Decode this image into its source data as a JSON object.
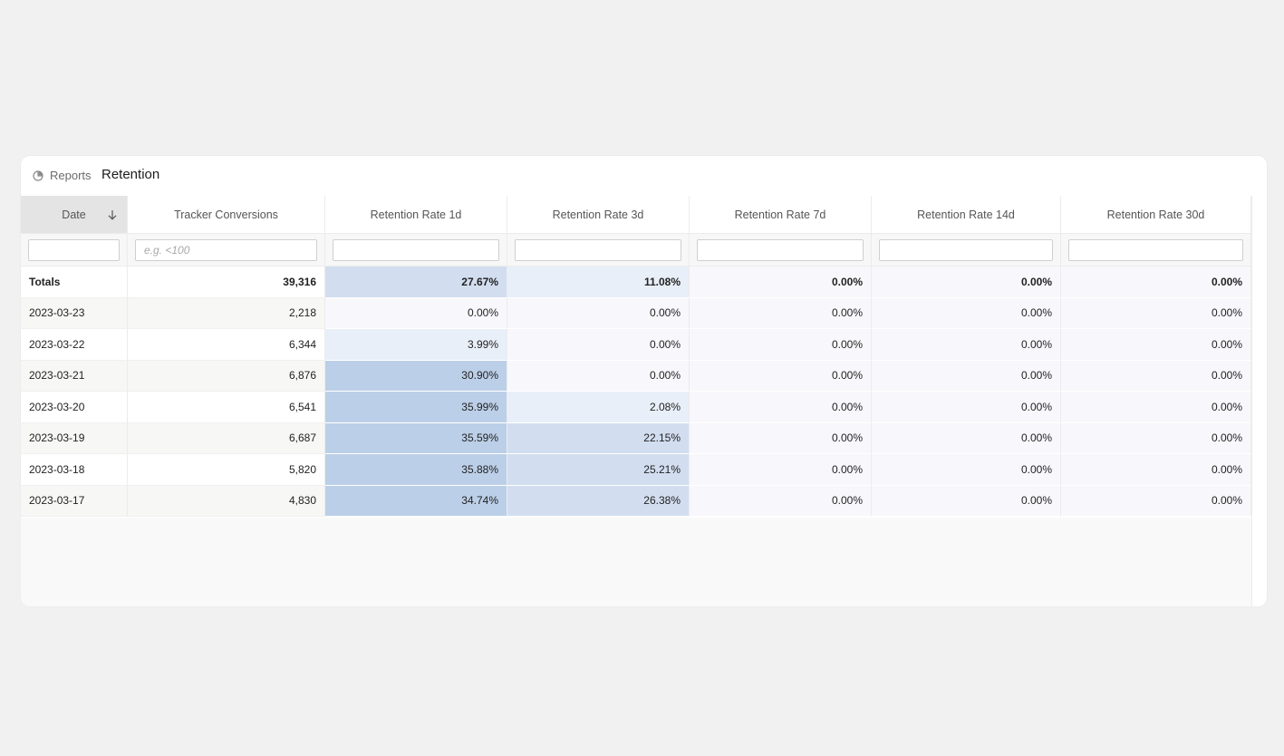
{
  "header": {
    "breadcrumb": "Reports",
    "title": "Retention",
    "icon": "pie-chart-icon"
  },
  "columns": [
    {
      "label": "Date",
      "sorted": "desc"
    },
    {
      "label": "Tracker Conversions"
    },
    {
      "label": "Retention Rate 1d"
    },
    {
      "label": "Retention Rate 3d"
    },
    {
      "label": "Retention Rate 7d"
    },
    {
      "label": "Retention Rate 14d"
    },
    {
      "label": "Retention Rate 30d"
    }
  ],
  "filters": [
    "",
    "e.g. <100",
    "",
    "",
    "",
    "",
    ""
  ],
  "totals": {
    "label": "Totals",
    "conversions": "39,316",
    "rates": [
      "27.67%",
      "11.08%",
      "0.00%",
      "0.00%",
      "0.00%"
    ]
  },
  "rows": [
    {
      "date": "2023-03-23",
      "conversions": "2,218",
      "rates": [
        "0.00%",
        "0.00%",
        "0.00%",
        "0.00%",
        "0.00%"
      ]
    },
    {
      "date": "2023-03-22",
      "conversions": "6,344",
      "rates": [
        "3.99%",
        "0.00%",
        "0.00%",
        "0.00%",
        "0.00%"
      ]
    },
    {
      "date": "2023-03-21",
      "conversions": "6,876",
      "rates": [
        "30.90%",
        "0.00%",
        "0.00%",
        "0.00%",
        "0.00%"
      ]
    },
    {
      "date": "2023-03-20",
      "conversions": "6,541",
      "rates": [
        "35.99%",
        "2.08%",
        "0.00%",
        "0.00%",
        "0.00%"
      ]
    },
    {
      "date": "2023-03-19",
      "conversions": "6,687",
      "rates": [
        "35.59%",
        "22.15%",
        "0.00%",
        "0.00%",
        "0.00%"
      ]
    },
    {
      "date": "2023-03-18",
      "conversions": "5,820",
      "rates": [
        "35.88%",
        "25.21%",
        "0.00%",
        "0.00%",
        "0.00%"
      ]
    },
    {
      "date": "2023-03-17",
      "conversions": "4,830",
      "rates": [
        "34.74%",
        "26.38%",
        "0.00%",
        "0.00%",
        "0.00%"
      ]
    }
  ],
  "colors": {
    "heat_high": "#bccfe8",
    "heat_mid": "#d2def0",
    "heat_low": "#e9eff8",
    "heat_zero": "#f8f8fc",
    "sorted_header": "#e4e4e4",
    "stripe": "#f7f7f6"
  }
}
